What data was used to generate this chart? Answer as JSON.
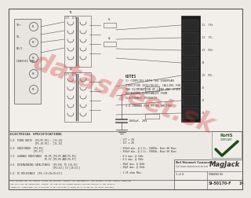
{
  "bg_color": "#ece9e4",
  "schematic_bg": "#f2efea",
  "line_color": "#555555",
  "text_color": "#333333",
  "watermark_text": "datasheet.sk",
  "watermark_color": "#cc3333",
  "watermark_alpha": 0.32,
  "notes_title": "NOTES",
  "note1": "1) COMPLIES WITH THE EUROPEAN\nDIRECTIVE 2002/95/EC, CALLING FOR\nTHE ELIMINATION OF LEAD AND OTHER\nHAZARDOUS SUBSTANCES FROM\nELECTRONIC PRODUCTS",
  "note2": "2.0 UNUSED PIN PT IS OMITTED",
  "elec_title": "ELECTRICAL SPECIFICATIONS",
  "spec1_label": "1.0  TURNS RATIO  [P4-P5-P6] : [J3-J4]",
  "spec1_sub": "                  [P5-J0-P1] : [J1-J5]",
  "spec1_val": ": 1CT x 2B",
  "spec1_val2": ": 1CT x 2B",
  "spec2_label": "2.0  INDUCTANCE  [P4-P6]",
  "spec2_sub": "                 [P5-P7]",
  "spec2_val": ": 350uH min. @ 2.1c, 100KHz, Bias 00 Bias",
  "spec2_val2": ": 350uH min. @ 2.1c, 100KHz, Bias 00 Bias",
  "spec3_label": "3.0  LEAKAGE INDUCTANCE  P4-P6 [P4-P5 AND P5-P6]",
  "spec3_sub": "                         P5-P7 [P5-P6 AND P6-P7]",
  "spec3_val": ": 0.5 max. @ 1kHz",
  "spec3_val2": ": 0.5 max. @ 1kHz",
  "spec4_label": "4.0  INTERWINDING CAPACITANCE  [P5-P6] TO [J4-J5]",
  "spec4_sub": "                               [P5(J1)] TO [J5(J1)]",
  "spec4_val": ": 30pF max. @ 1kHz",
  "spec4_val2": ": 30pF max. @ 1kHz",
  "spec5_label": "5.0  DC RESISTANCE  [P4-(J3+J4+J5+J1)]",
  "spec5_val": ": 1.35 ohms Max.",
  "company1": "Bel Stewart Connector",
  "company2": "http://www.stewartconnector.com",
  "brand": "MagJack",
  "drawing_no": "SI-50170-F",
  "rev": "14",
  "sheet": "1 of 4",
  "footer1": "THIS DRAWING AND ITS SUBJECT MATTER ARE ORIGINAL THEREIN AND CONFIDENTIAL, ARE PROPERTY OF BEL STEWART CONNECTOR",
  "footer2": "AND SHALL NOT BE REPRODUCED, COPIED, OR USED IN ANY MANNER WITHOUT WRITTEN CONSENT OF BEL STEWART",
  "footer3": "CONNECTOR. DIMENSIONS AND TOLERANCES TO BE SPECIFIED AS SHOWN OR AS STATED IN ANY NOTES PROVIDED.",
  "tx_labels": [
    "TD+",
    "TD-",
    "RD/1",
    "CHASSIS GND"
  ],
  "pin_circles": [
    "P1",
    "P2",
    "P3",
    "P4",
    "P5"
  ],
  "rx_labels": [
    "J1  TX+",
    "J2  TX-",
    "J3  RX+",
    "J4",
    "J5  RX-",
    "J6",
    "J7",
    "J8"
  ],
  "cap_label": "1000pF, 2KV",
  "t1_label": "T1",
  "t2_label": "T2"
}
